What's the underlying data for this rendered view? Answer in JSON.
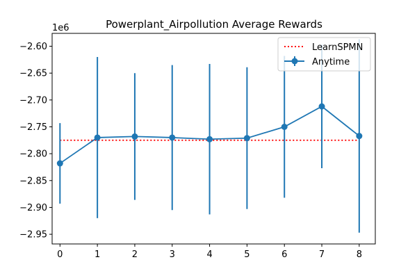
{
  "chart_data": {
    "type": "line",
    "title": "Powerplant_Airpollution Average Rewards",
    "xlabel": "",
    "ylabel": "",
    "y_offset_label": "1e6",
    "x_ticks": [
      "0",
      "1",
      "2",
      "3",
      "4",
      "5",
      "6",
      "7",
      "8"
    ],
    "y_ticks": [
      "−2.60",
      "−2.65",
      "−2.70",
      "−2.75",
      "−2.80",
      "−2.85",
      "−2.90",
      "−2.95"
    ],
    "y_tick_values": [
      -2600000,
      -2650000,
      -2700000,
      -2750000,
      -2800000,
      -2850000,
      -2900000,
      -2950000
    ],
    "xlim": [
      -0.21,
      8.43
    ],
    "ylim": [
      -2968000,
      -2576000
    ],
    "grid": false,
    "legend_position": "top-right",
    "series": [
      {
        "name": "LearnSPMN",
        "style": "dotted",
        "color": "#ff0000",
        "x": [
          0,
          8
        ],
        "values": [
          -2775000,
          -2775000
        ]
      },
      {
        "name": "Anytime",
        "style": "solid-markers-errorbars",
        "color": "#1f77b4",
        "x": [
          0,
          1,
          2,
          3,
          4,
          5,
          6,
          7,
          8
        ],
        "values": [
          -2818000,
          -2770000,
          -2768000,
          -2770000,
          -2773000,
          -2771000,
          -2750000,
          -2712000,
          -2767000
        ],
        "error": [
          75000,
          150000,
          118000,
          135000,
          140000,
          132000,
          132000,
          115000,
          180000
        ]
      }
    ]
  }
}
